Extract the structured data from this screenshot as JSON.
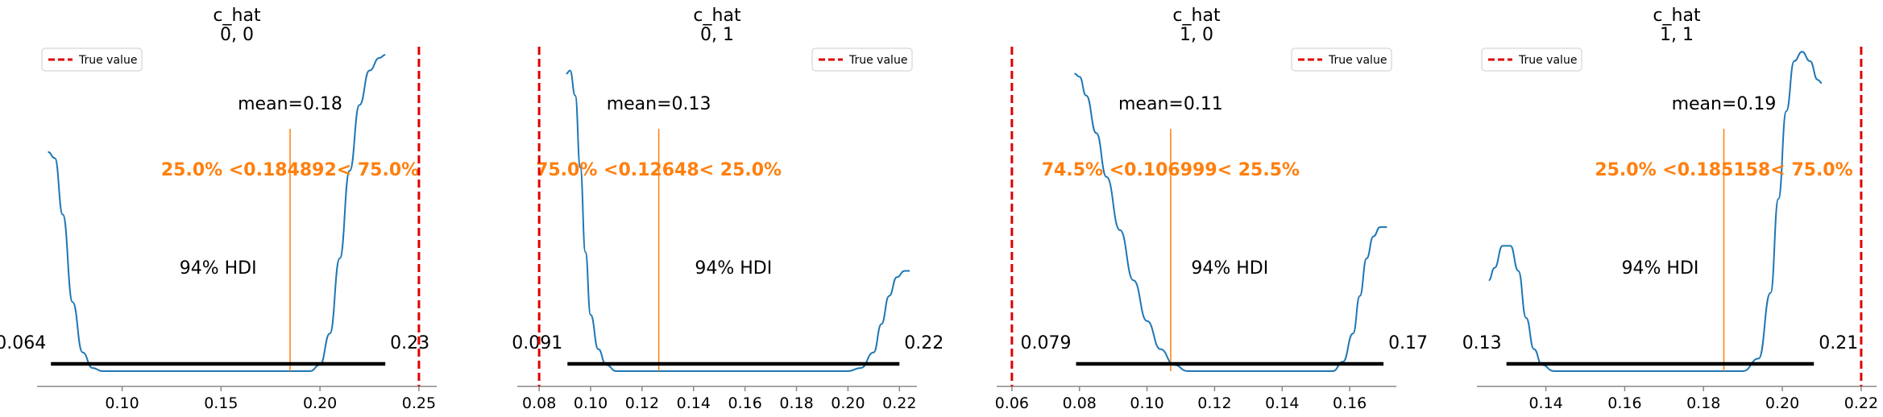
{
  "chart_data": [
    {
      "type": "area",
      "title": "c_hat",
      "subtitle": "0, 0",
      "xlim": [
        0.057,
        0.259
      ],
      "x_ticks": [
        "0.10",
        "0.15",
        "0.20",
        "0.25"
      ],
      "x_tick_values": [
        0.1,
        0.15,
        0.2,
        0.25
      ],
      "density": {
        "x": [
          0.0625,
          0.066,
          0.07,
          0.075,
          0.08,
          0.085,
          0.09,
          0.1,
          0.12,
          0.14,
          0.16,
          0.18,
          0.195,
          0.2,
          0.205,
          0.21,
          0.215,
          0.22,
          0.225,
          0.23,
          0.233
        ],
        "y": [
          0.7,
          0.68,
          0.5,
          0.22,
          0.06,
          0.01,
          0.0,
          0.0,
          0.0,
          0.0,
          0.0,
          0.0,
          0.0,
          0.02,
          0.12,
          0.36,
          0.64,
          0.85,
          0.96,
          1.0,
          1.01
        ]
      },
      "mean_label": "mean=0.18",
      "mean": 0.184892,
      "hdi_label": "94% HDI",
      "hdi": [
        0.064,
        0.233
      ],
      "hdi_low_label": "0.064",
      "hdi_high_label": "0.23",
      "ref_label": "25.0% <0.184892< 75.0%",
      "true_value": 0.25,
      "legend": [
        "True value"
      ],
      "legend_position": "upper left"
    },
    {
      "type": "area",
      "title": "c_hat",
      "subtitle": "0, 1",
      "xlim": [
        0.0715,
        0.2268
      ],
      "x_ticks": [
        "0.08",
        "0.10",
        "0.12",
        "0.14",
        "0.16",
        "0.18",
        "0.20",
        "0.22"
      ],
      "x_tick_values": [
        0.08,
        0.1,
        0.12,
        0.14,
        0.16,
        0.18,
        0.2,
        0.22
      ],
      "density": {
        "x": [
          0.0905,
          0.092,
          0.094,
          0.096,
          0.098,
          0.1,
          0.103,
          0.106,
          0.11,
          0.12,
          0.15,
          0.18,
          0.2,
          0.205,
          0.21,
          0.213,
          0.216,
          0.219,
          0.222,
          0.224
        ],
        "y": [
          0.95,
          0.96,
          0.88,
          0.65,
          0.38,
          0.18,
          0.07,
          0.02,
          0.0,
          0.0,
          0.0,
          0.0,
          0.0,
          0.01,
          0.06,
          0.15,
          0.24,
          0.3,
          0.32,
          0.32
        ]
      },
      "mean_label": "mean=0.13",
      "mean": 0.12648,
      "hdi_label": "94% HDI",
      "hdi": [
        0.091,
        0.22
      ],
      "hdi_low_label": "0.091",
      "hdi_high_label": "0.22",
      "ref_label": "75.0% <0.12648< 25.0%",
      "true_value": 0.08,
      "legend": [
        "True value"
      ],
      "legend_position": "upper right"
    },
    {
      "type": "area",
      "title": "c_hat",
      "subtitle": "1, 0",
      "xlim": [
        0.0555,
        0.1738
      ],
      "x_ticks": [
        "0.06",
        "0.08",
        "0.10",
        "0.12",
        "0.14",
        "0.16"
      ],
      "x_tick_values": [
        0.06,
        0.08,
        0.1,
        0.12,
        0.14,
        0.16
      ],
      "density": {
        "x": [
          0.0785,
          0.08,
          0.082,
          0.085,
          0.088,
          0.092,
          0.096,
          0.1,
          0.104,
          0.108,
          0.112,
          0.12,
          0.14,
          0.155,
          0.158,
          0.161,
          0.163,
          0.165,
          0.167,
          0.169,
          0.171
        ],
        "y": [
          0.95,
          0.94,
          0.88,
          0.76,
          0.62,
          0.45,
          0.29,
          0.16,
          0.07,
          0.02,
          0.0,
          0.0,
          0.0,
          0.0,
          0.03,
          0.12,
          0.24,
          0.36,
          0.43,
          0.46,
          0.46
        ]
      },
      "mean_label": "mean=0.11",
      "mean": 0.106999,
      "hdi_label": "94% HDI",
      "hdi": [
        0.079,
        0.17
      ],
      "hdi_low_label": "0.079",
      "hdi_high_label": "0.17",
      "ref_label": "74.5% <0.106999< 25.5%",
      "true_value": 0.06,
      "legend": [
        "True value"
      ],
      "legend_position": "upper right"
    },
    {
      "type": "area",
      "title": "c_hat",
      "subtitle": "1, 1",
      "xlim": [
        0.1225,
        0.2239
      ],
      "x_ticks": [
        "0.14",
        "0.16",
        "0.18",
        "0.20",
        "0.22"
      ],
      "x_tick_values": [
        0.14,
        0.16,
        0.18,
        0.2,
        0.22
      ],
      "density": {
        "x": [
          0.1255,
          0.127,
          0.129,
          0.131,
          0.133,
          0.135,
          0.137,
          0.139,
          0.142,
          0.15,
          0.17,
          0.19,
          0.194,
          0.197,
          0.199,
          0.201,
          0.203,
          0.205,
          0.207,
          0.209,
          0.21
        ],
        "y": [
          0.29,
          0.33,
          0.4,
          0.4,
          0.32,
          0.17,
          0.07,
          0.02,
          0.0,
          0.0,
          0.0,
          0.0,
          0.04,
          0.25,
          0.55,
          0.83,
          0.99,
          1.02,
          0.99,
          0.93,
          0.92
        ]
      },
      "mean_label": "mean=0.19",
      "mean": 0.185158,
      "hdi_label": "94% HDI",
      "hdi": [
        0.13,
        0.208
      ],
      "hdi_low_label": "0.13",
      "hdi_high_label": "0.21",
      "ref_label": "25.0% <0.185158< 75.0%",
      "true_value": 0.22,
      "legend": [
        "True value"
      ],
      "legend_position": "upper left"
    }
  ],
  "colors": {
    "density": "#1f77b4",
    "reference": "#ff7f0e",
    "true_value": "#dd0000",
    "hdi": "#000000",
    "axis": "#888888"
  }
}
